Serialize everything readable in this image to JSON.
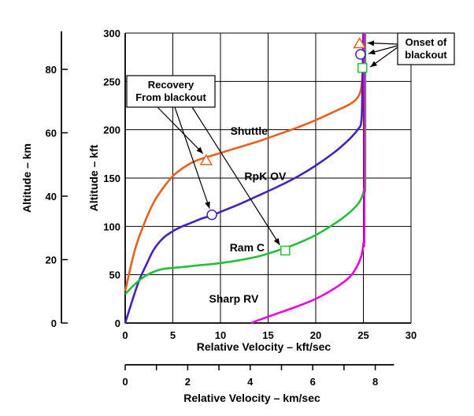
{
  "chart_data": {
    "type": "line",
    "xlabel": "Relative Velocity – kft/sec",
    "ylabel_left": "Altitude – kft",
    "ylabel_far_left": "Altitude – km",
    "x2label": "Relative Velocity – km/sec",
    "xlim": [
      0,
      30
    ],
    "ylim": [
      0,
      300
    ],
    "x_ticks": [
      "0",
      "5",
      "10",
      "15",
      "20",
      "25",
      "30"
    ],
    "y_ticks": [
      "0",
      "50",
      "100",
      "150",
      "200",
      "250",
      "300"
    ],
    "km_ticks": [
      "0",
      "20",
      "40",
      "60",
      "80"
    ],
    "km_tick_values": [
      0,
      20,
      40,
      60,
      80
    ],
    "kms_ticks": [
      "0",
      "2",
      "4",
      "6",
      "8"
    ],
    "kms_tick_values": [
      0,
      2,
      4,
      6,
      8
    ],
    "grid": true,
    "series": [
      {
        "name": "Shuttle",
        "color": "#e8601c",
        "points": [
          [
            0,
            33
          ],
          [
            1,
            75
          ],
          [
            2,
            103
          ],
          [
            3,
            125
          ],
          [
            4,
            140
          ],
          [
            5,
            152
          ],
          [
            6,
            160
          ],
          [
            7,
            166
          ],
          [
            8,
            170
          ],
          [
            9,
            173
          ],
          [
            10,
            176
          ],
          [
            12,
            182
          ],
          [
            14,
            188
          ],
          [
            16,
            195
          ],
          [
            18,
            202
          ],
          [
            20,
            210
          ],
          [
            22,
            219
          ],
          [
            23.5,
            226
          ],
          [
            24.3,
            232
          ],
          [
            24.7,
            240
          ],
          [
            24.9,
            255
          ],
          [
            25,
            275
          ],
          [
            25,
            300
          ]
        ]
      },
      {
        "name": "RpK OV",
        "color": "#4422bb",
        "points": [
          [
            0,
            0
          ],
          [
            0.8,
            25
          ],
          [
            1.5,
            45
          ],
          [
            2.3,
            62
          ],
          [
            3,
            76
          ],
          [
            4,
            88
          ],
          [
            5,
            95
          ],
          [
            6,
            100
          ],
          [
            7,
            104
          ],
          [
            8,
            108
          ],
          [
            9,
            111
          ],
          [
            10,
            115
          ],
          [
            12,
            123
          ],
          [
            14,
            132
          ],
          [
            16,
            141
          ],
          [
            18,
            151
          ],
          [
            20,
            163
          ],
          [
            22,
            177
          ],
          [
            23.5,
            190
          ],
          [
            24.4,
            200
          ],
          [
            24.8,
            210
          ],
          [
            24.9,
            250
          ],
          [
            25,
            300
          ]
        ]
      },
      {
        "name": "Ram C",
        "color": "#22c03a",
        "points": [
          [
            0,
            30
          ],
          [
            1,
            40
          ],
          [
            2,
            48
          ],
          [
            3,
            53
          ],
          [
            4,
            56
          ],
          [
            6,
            58
          ],
          [
            8,
            60
          ],
          [
            10,
            62
          ],
          [
            12,
            65
          ],
          [
            14,
            69
          ],
          [
            16,
            75
          ],
          [
            18,
            82
          ],
          [
            20,
            91
          ],
          [
            22,
            103
          ],
          [
            23.5,
            114
          ],
          [
            24.5,
            124
          ],
          [
            24.9,
            132
          ],
          [
            25.1,
            140
          ],
          [
            25.2,
            150
          ],
          [
            25.2,
            300
          ]
        ]
      },
      {
        "name": "Sharp RV",
        "color": "#ee00dd",
        "points": [
          [
            13.2,
            0
          ],
          [
            14,
            3
          ],
          [
            16,
            10
          ],
          [
            18,
            17
          ],
          [
            20,
            25
          ],
          [
            22,
            36
          ],
          [
            23.5,
            47
          ],
          [
            24.3,
            58
          ],
          [
            24.8,
            70
          ],
          [
            25,
            82
          ],
          [
            25.1,
            100
          ],
          [
            25.1,
            300
          ]
        ]
      }
    ],
    "markers": [
      {
        "series": "Shuttle",
        "shape": "triangle",
        "x": 8.5,
        "y": 168,
        "color": "#e8601c"
      },
      {
        "series": "RpK OV",
        "shape": "circle",
        "x": 9.1,
        "y": 112,
        "color": "#4422bb"
      },
      {
        "series": "Ram C",
        "shape": "square",
        "x": 16.8,
        "y": 75,
        "color": "#22c03a"
      },
      {
        "series": "Shuttle",
        "shape": "triangle",
        "x": 24.6,
        "y": 289,
        "color": "#e8601c"
      },
      {
        "series": "RpK OV",
        "shape": "circle",
        "x": 24.7,
        "y": 278,
        "color": "#4422bb"
      },
      {
        "series": "Ram C",
        "shape": "square",
        "x": 24.9,
        "y": 264,
        "color": "#22c03a"
      }
    ],
    "curve_labels": [
      {
        "text": "Shuttle",
        "x": 13,
        "y": 195
      },
      {
        "text": "RpK OV",
        "x": 14.7,
        "y": 148
      },
      {
        "text": "Ram C",
        "x": 12.8,
        "y": 74
      },
      {
        "text": "Sharp RV",
        "x": 11.4,
        "y": 21
      }
    ],
    "annotations": {
      "recovery": {
        "lines": [
          "Recovery",
          "From blackout"
        ]
      },
      "onset": {
        "lines": [
          "Onset of",
          "blackout"
        ]
      }
    }
  }
}
